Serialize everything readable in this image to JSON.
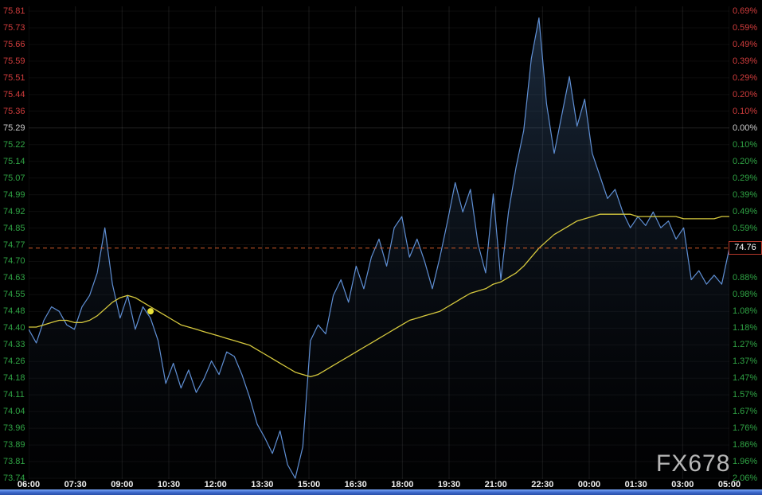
{
  "watermark": "FX678",
  "quote": {
    "last": "74.76",
    "prev_close": "75.29"
  },
  "colors": {
    "background": "#000000",
    "up": "#d03c3c",
    "down": "#2fa344",
    "neutral": "#cccccc",
    "time_label": "#f0f0f0",
    "price_line": "#5f8fd4",
    "area_top": "rgba(90,140,200,0.30)",
    "area_bottom": "rgba(20,30,50,0.05)",
    "ma_line": "#d6c93e",
    "marker": "#e8e13a",
    "last_price_line": "#d05a28",
    "price_box_border": "#b5382b",
    "grid_v": "rgba(255,255,255,0.09)",
    "grid_h": "rgba(255,255,255,0.05)",
    "zero_line": "rgba(255,255,255,0.13)",
    "watermark": "#cccccc"
  },
  "chart_data": {
    "type": "line",
    "title": "",
    "xlabel": "",
    "ylabel": "",
    "ylim": [
      73.74,
      75.81
    ],
    "grid": true,
    "legend": "none",
    "x": [
      "06:00",
      "06:15",
      "06:30",
      "06:45",
      "07:00",
      "07:15",
      "07:30",
      "07:45",
      "08:00",
      "08:15",
      "08:30",
      "08:45",
      "09:00",
      "09:15",
      "09:30",
      "09:45",
      "10:00",
      "10:15",
      "10:30",
      "10:45",
      "11:00",
      "11:15",
      "11:30",
      "11:45",
      "12:00",
      "12:15",
      "12:30",
      "12:45",
      "13:00",
      "13:15",
      "13:30",
      "13:45",
      "14:00",
      "14:15",
      "14:30",
      "14:45",
      "15:00",
      "15:15",
      "15:30",
      "15:45",
      "16:00",
      "16:15",
      "16:30",
      "16:45",
      "17:00",
      "17:15",
      "17:30",
      "17:45",
      "18:00",
      "18:15",
      "18:30",
      "18:45",
      "19:00",
      "19:15",
      "19:30",
      "19:45",
      "20:00",
      "20:15",
      "20:30",
      "20:45",
      "21:00",
      "21:15",
      "21:30",
      "21:45",
      "22:00",
      "22:15",
      "22:30",
      "22:45",
      "23:00",
      "23:15",
      "23:30",
      "23:45",
      "00:00",
      "00:15",
      "00:30",
      "00:45",
      "01:00",
      "01:15",
      "01:30",
      "01:45",
      "02:00",
      "02:15",
      "02:30",
      "02:45",
      "03:00",
      "03:15",
      "03:30",
      "03:45",
      "04:00",
      "04:15",
      "04:30",
      "04:45",
      "05:00"
    ],
    "series": [
      {
        "name": "price",
        "values": [
          74.4,
          74.34,
          74.44,
          74.5,
          74.48,
          74.42,
          74.4,
          74.5,
          74.55,
          74.65,
          74.85,
          74.6,
          74.45,
          74.55,
          74.4,
          74.5,
          74.45,
          74.35,
          74.16,
          74.25,
          74.14,
          74.22,
          74.12,
          74.18,
          74.26,
          74.2,
          74.3,
          74.28,
          74.2,
          74.1,
          73.98,
          73.92,
          73.85,
          73.95,
          73.8,
          73.74,
          73.88,
          74.35,
          74.42,
          74.38,
          74.55,
          74.62,
          74.52,
          74.68,
          74.58,
          74.72,
          74.8,
          74.68,
          74.85,
          74.9,
          74.72,
          74.8,
          74.7,
          74.58,
          74.72,
          74.88,
          75.05,
          74.92,
          75.02,
          74.78,
          74.65,
          75.0,
          74.62,
          74.92,
          75.12,
          75.28,
          75.6,
          75.78,
          75.4,
          75.18,
          75.35,
          75.52,
          75.3,
          75.42,
          75.18,
          75.08,
          74.98,
          75.02,
          74.92,
          74.85,
          74.9,
          74.86,
          74.92,
          74.85,
          74.88,
          74.8,
          74.85,
          74.62,
          74.66,
          74.6,
          74.64,
          74.6,
          74.76
        ]
      },
      {
        "name": "moving-average",
        "values": [
          74.41,
          74.41,
          74.42,
          74.43,
          74.44,
          74.44,
          74.43,
          74.43,
          74.44,
          74.46,
          74.49,
          74.52,
          74.54,
          74.55,
          74.54,
          74.52,
          74.5,
          74.48,
          74.46,
          74.44,
          74.42,
          74.41,
          74.4,
          74.39,
          74.38,
          74.37,
          74.36,
          74.35,
          74.34,
          74.33,
          74.31,
          74.29,
          74.27,
          74.25,
          74.23,
          74.21,
          74.2,
          74.19,
          74.2,
          74.22,
          74.24,
          74.26,
          74.28,
          74.3,
          74.32,
          74.34,
          74.36,
          74.38,
          74.4,
          74.42,
          74.44,
          74.45,
          74.46,
          74.47,
          74.48,
          74.5,
          74.52,
          74.54,
          74.56,
          74.57,
          74.58,
          74.6,
          74.61,
          74.63,
          74.65,
          74.68,
          74.72,
          74.76,
          74.79,
          74.82,
          74.84,
          74.86,
          74.88,
          74.89,
          74.9,
          74.91,
          74.91,
          74.91,
          74.91,
          74.91,
          74.9,
          74.9,
          74.9,
          74.9,
          74.9,
          74.9,
          74.89,
          74.89,
          74.89,
          74.89,
          74.89,
          74.9,
          74.9
        ]
      }
    ],
    "marker": {
      "x": "10:00",
      "y": 74.48
    },
    "last_price": 74.76,
    "prev_close": 75.29,
    "x_ticks": [
      "06:00",
      "07:30",
      "09:00",
      "10:30",
      "12:00",
      "13:30",
      "15:00",
      "16:30",
      "18:00",
      "19:30",
      "21:00",
      "22:30",
      "00:00",
      "01:30",
      "03:00",
      "05:00"
    ],
    "y_ticks_left": [
      "75.81",
      "75.73",
      "75.66",
      "75.59",
      "75.51",
      "75.44",
      "75.36",
      "75.29",
      "75.22",
      "75.14",
      "75.07",
      "74.99",
      "74.92",
      "74.85",
      "74.77",
      "74.70",
      "74.63",
      "74.55",
      "74.48",
      "74.40",
      "74.33",
      "74.26",
      "74.18",
      "74.11",
      "74.04",
      "73.96",
      "73.89",
      "73.81",
      "73.74"
    ],
    "y_ticks_right": [
      "0.69%",
      "0.59%",
      "0.49%",
      "0.39%",
      "0.29%",
      "0.20%",
      "0.10%",
      "0.00%",
      "0.10%",
      "0.20%",
      "0.29%",
      "0.39%",
      "0.49%",
      "0.59%",
      "0.69%",
      "",
      "0.88%",
      "0.98%",
      "1.08%",
      "1.18%",
      "1.27%",
      "1.37%",
      "1.47%",
      "1.57%",
      "1.67%",
      "1.76%",
      "1.86%",
      "1.96%",
      "2.06%"
    ],
    "zero_index": 7
  }
}
